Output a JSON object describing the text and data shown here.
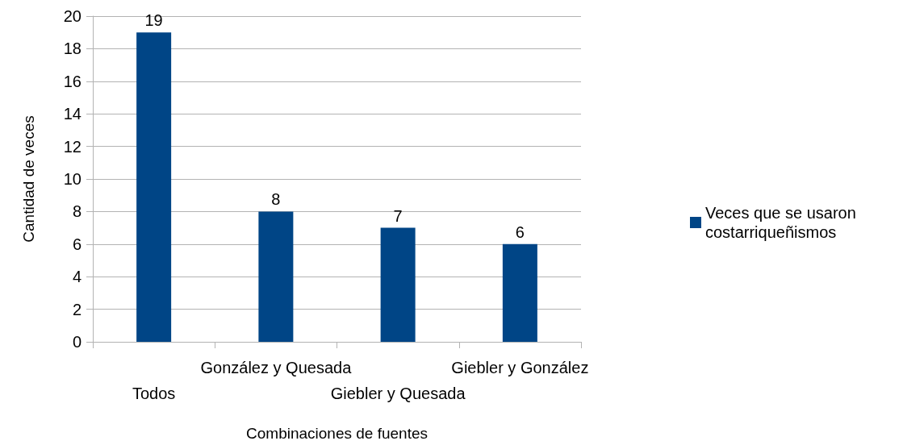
{
  "chart_data": {
    "type": "bar",
    "xlabel": "Combinaciones de fuentes",
    "ylabel": "Cantidad de veces",
    "categories": [
      "Todos",
      "González y Quesada",
      "Giebler y Quesada",
      "Giebler y González"
    ],
    "series": [
      {
        "name": "Veces que se usaron costarriqueñismos",
        "color": "#004586",
        "values": [
          19,
          8,
          7,
          6
        ]
      }
    ],
    "ylim": [
      0,
      20
    ],
    "yticks": [
      0,
      2,
      4,
      6,
      8,
      10,
      12,
      14,
      16,
      18,
      20
    ],
    "grid": "y",
    "legend": "right",
    "data_labels": true
  }
}
